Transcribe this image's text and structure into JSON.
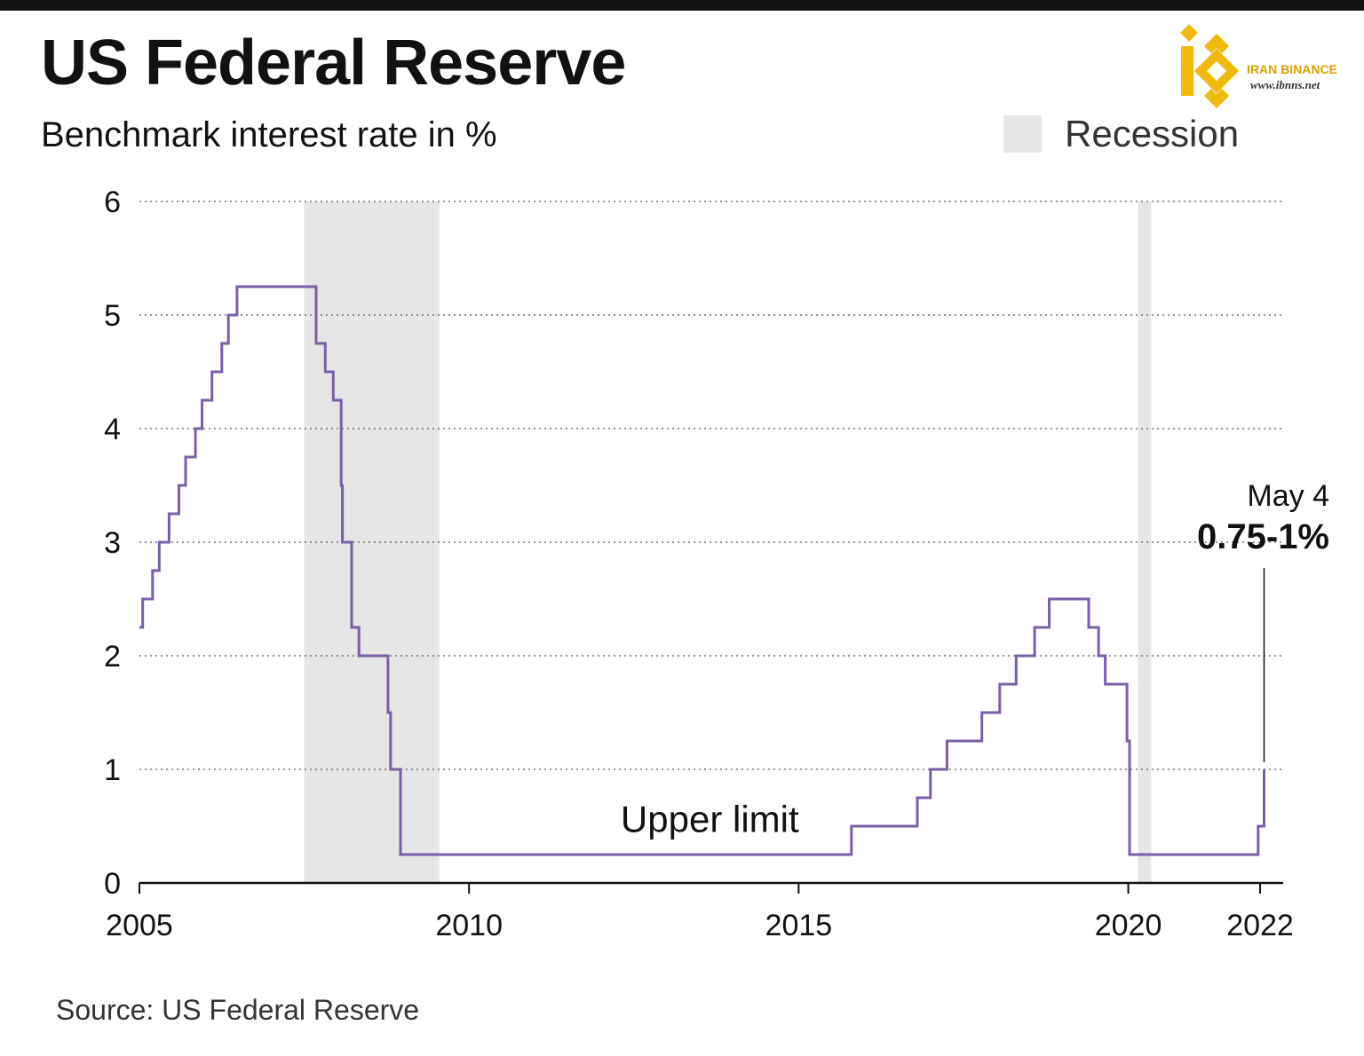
{
  "title": "US Federal Reserve",
  "subtitle": "Benchmark interest rate in %",
  "legend": {
    "recession_label": "Recession"
  },
  "source": "Source:  US Federal Reserve",
  "logo": {
    "name": "IRAN BINANCE",
    "url": "www.ibnns.net"
  },
  "colors": {
    "line": "#7b5ea7",
    "recession": "#e6e6e6",
    "grid": "#555555",
    "text": "#111111"
  },
  "chart_data": {
    "type": "line",
    "step": true,
    "ylabel": "Benchmark interest rate in %",
    "ylim": [
      0,
      6
    ],
    "yticks": [
      0,
      1,
      2,
      3,
      4,
      5,
      6
    ],
    "xlim": [
      2005,
      2022.35
    ],
    "xticks": [
      2005,
      2010,
      2015,
      2020,
      2022
    ],
    "grid": "horizontal dotted",
    "legend_position": "top-right",
    "recessions": [
      {
        "start": 2007.5,
        "end": 2009.55
      },
      {
        "start": 2020.15,
        "end": 2020.35
      }
    ],
    "series": [
      {
        "name": "Upper limit",
        "points": [
          [
            2005.0,
            2.25
          ],
          [
            2005.05,
            2.5
          ],
          [
            2005.2,
            2.75
          ],
          [
            2005.3,
            3.0
          ],
          [
            2005.45,
            3.25
          ],
          [
            2005.6,
            3.5
          ],
          [
            2005.7,
            3.75
          ],
          [
            2005.85,
            4.0
          ],
          [
            2005.95,
            4.25
          ],
          [
            2006.1,
            4.5
          ],
          [
            2006.25,
            4.75
          ],
          [
            2006.35,
            5.0
          ],
          [
            2006.48,
            5.25
          ],
          [
            2007.68,
            4.75
          ],
          [
            2007.82,
            4.5
          ],
          [
            2007.94,
            4.25
          ],
          [
            2008.06,
            3.5
          ],
          [
            2008.08,
            3.0
          ],
          [
            2008.22,
            2.25
          ],
          [
            2008.33,
            2.0
          ],
          [
            2008.77,
            1.5
          ],
          [
            2008.81,
            1.0
          ],
          [
            2008.96,
            0.25
          ],
          [
            2015.8,
            0.5
          ],
          [
            2016.8,
            0.75
          ],
          [
            2017.0,
            1.0
          ],
          [
            2017.25,
            1.25
          ],
          [
            2017.78,
            1.5
          ],
          [
            2018.05,
            1.75
          ],
          [
            2018.3,
            2.0
          ],
          [
            2018.58,
            2.25
          ],
          [
            2018.8,
            2.5
          ],
          [
            2019.4,
            2.25
          ],
          [
            2019.55,
            2.0
          ],
          [
            2019.65,
            1.75
          ],
          [
            2019.98,
            1.25
          ],
          [
            2020.02,
            0.25
          ],
          [
            2021.97,
            0.5
          ],
          [
            2022.05,
            0.5
          ],
          [
            2022.06,
            1.0
          ]
        ]
      }
    ],
    "annotations": [
      {
        "text": "Upper limit",
        "x": 2012.3,
        "y": 0.45
      },
      {
        "label": "May 4",
        "value_text": "0.75-1%",
        "x": 2022.06,
        "y": 1.0
      }
    ]
  }
}
